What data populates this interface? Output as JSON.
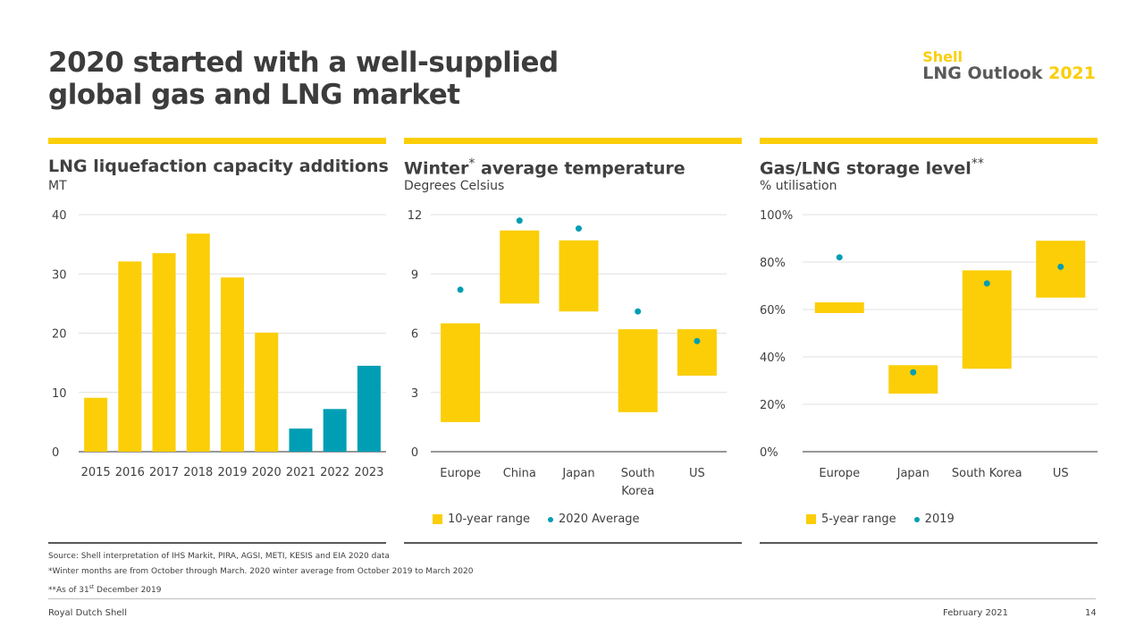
{
  "slide": {
    "title_line1": "2020 started with a well-supplied",
    "title_line2": "global gas and LNG market",
    "brand_shell": "Shell",
    "brand_lng": "LNG Outlook",
    "brand_year": "2021",
    "colors": {
      "yellow": "#fbce07",
      "teal": "#009eb4",
      "text": "#404040"
    }
  },
  "chart_data": [
    {
      "type": "bar",
      "title": "LNG liquefaction capacity additions",
      "subtitle": "MT",
      "xlabel": "",
      "ylabel": "MT",
      "categories": [
        "2015",
        "2016",
        "2017",
        "2018",
        "2019",
        "2020",
        "2021",
        "2022",
        "2023"
      ],
      "values": [
        9.1,
        32.1,
        33.5,
        36.8,
        29.4,
        20.1,
        3.9,
        7.2,
        14.5
      ],
      "bar_colors": [
        "#fbce07",
        "#fbce07",
        "#fbce07",
        "#fbce07",
        "#fbce07",
        "#fbce07",
        "#009eb4",
        "#009eb4",
        "#009eb4"
      ],
      "ylim": [
        0,
        40
      ],
      "yticks": [
        0,
        10,
        20,
        30,
        40
      ],
      "ytick_labels": [
        "0",
        "10",
        "20",
        "30",
        "40"
      ],
      "grid": true
    },
    {
      "type": "range-bar-with-points",
      "title": "Winter",
      "title_mark": "*",
      "title_rest": "average temperature",
      "subtitle": "Degrees Celsius",
      "categories": [
        "Europe",
        "China",
        "Japan",
        "South Korea",
        "US"
      ],
      "category_lines": [
        [
          "Europe"
        ],
        [
          "China"
        ],
        [
          "Japan"
        ],
        [
          "South",
          "Korea"
        ],
        [
          "US"
        ]
      ],
      "series": [
        {
          "name": "10-year range",
          "low": [
            1.5,
            7.5,
            7.1,
            2.0,
            3.85
          ],
          "high": [
            6.5,
            11.2,
            10.7,
            6.2,
            6.2
          ],
          "color": "#fbce07"
        },
        {
          "name": "2020 Average",
          "values": [
            8.2,
            11.7,
            11.3,
            7.1,
            5.6
          ],
          "color": "#009eb4"
        }
      ],
      "ylim": [
        0,
        12
      ],
      "yticks": [
        0,
        3,
        6,
        9,
        12
      ],
      "ytick_labels": [
        "0",
        "3",
        "6",
        "9",
        "12"
      ],
      "grid": true,
      "legend": [
        "10-year range",
        "2020 Average"
      ],
      "legend_position": "bottom-left"
    },
    {
      "type": "range-bar-with-points",
      "title": "Gas/LNG storage level",
      "title_mark": "**",
      "subtitle": "% utilisation",
      "categories": [
        "Europe",
        "Japan",
        "South Korea",
        "US"
      ],
      "category_lines": [
        [
          "Europe"
        ],
        [
          "Japan"
        ],
        [
          "South Korea"
        ],
        [
          "US"
        ]
      ],
      "series": [
        {
          "name": "5-year range",
          "low": [
            58.5,
            24.5,
            35,
            65
          ],
          "high": [
            63,
            36.5,
            76.5,
            89
          ],
          "color": "#fbce07"
        },
        {
          "name": "2019",
          "values": [
            82,
            33.5,
            71,
            78
          ],
          "color": "#009eb4"
        }
      ],
      "ylim": [
        0,
        100
      ],
      "yticks": [
        0,
        20,
        40,
        60,
        80,
        100
      ],
      "ytick_labels": [
        "0%",
        "20%",
        "40%",
        "60%",
        "80%",
        "100%"
      ],
      "grid": true,
      "legend": [
        "5-year range",
        "2019"
      ],
      "legend_position": "bottom-left"
    }
  ],
  "notes": {
    "source": "Source: Shell interpretation of IHS Markit, PIRA, AGSI, METI, KESIS and EIA 2020 data",
    "winter": "*Winter months are from October through March. 2020 winter average from October 2019 to March 2020",
    "storage_prefix": "**As of  31",
    "storage_sup": "st",
    "storage_suffix": "  December 2019"
  },
  "footer": {
    "company": "Royal Dutch Shell",
    "date": "February 2021",
    "page": "14"
  }
}
